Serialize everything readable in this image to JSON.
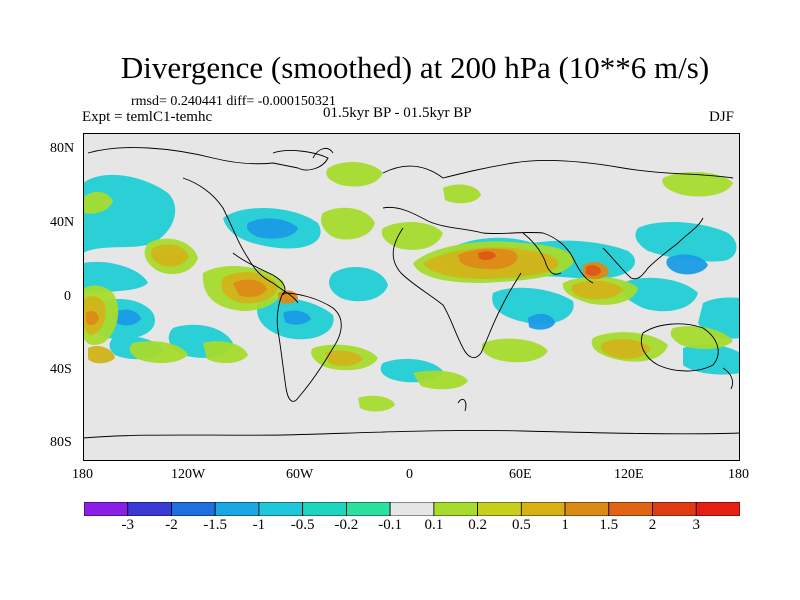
{
  "title": "Divergence (smoothed) at 200 hPa (10**6 m/s)",
  "stats": {
    "rmsd_label": "rmsd= 0.240441 diff= -0.000150321"
  },
  "experiment": "Expt = temlC1-temhc",
  "period": "01.5kyr BP - 01.5kyr BP",
  "season": "DJF",
  "latitude_labels": [
    "80N",
    "40N",
    "0",
    "40S",
    "80S"
  ],
  "longitude_labels": [
    "180",
    "120W",
    "60W",
    "0",
    "60E",
    "120E",
    "180"
  ],
  "colorbar": {
    "levels": [
      "-3",
      "-2",
      "-1.5",
      "-1",
      "-0.5",
      "-0.2",
      "-0.1",
      "0.1",
      "0.2",
      "0.5",
      "1",
      "1.5",
      "2",
      "3"
    ],
    "colors": [
      "#8a1fe8",
      "#3a3ad6",
      "#1e6fe0",
      "#1aa7e6",
      "#1ec8d8",
      "#1ed6c0",
      "#2ee0a0",
      "#e6e6e6",
      "#a6dc2e",
      "#c8cf1e",
      "#d6b014",
      "#dc8a14",
      "#e06414",
      "#e03c14",
      "#e61e14"
    ]
  },
  "map": {
    "ocean_background": "#e6e6e6",
    "coast_color": "#000000"
  }
}
